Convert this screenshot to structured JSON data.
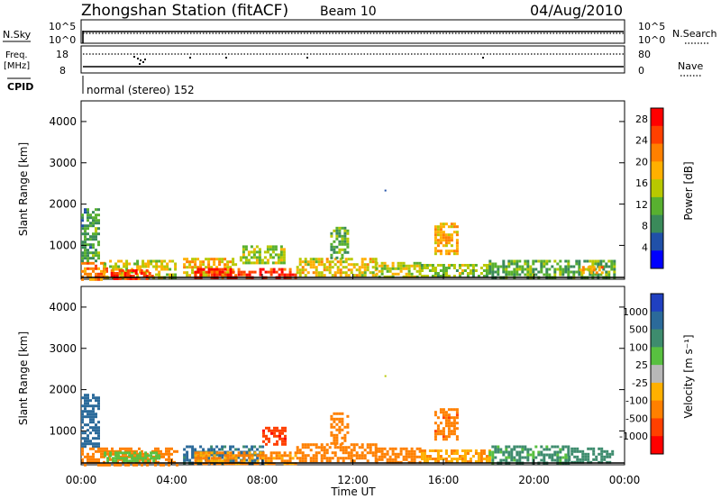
{
  "header": {
    "station_title": "Zhongshan Station (fitACF)",
    "beam": "Beam 10",
    "date": "04/Aug/2010"
  },
  "params": {
    "nsky_label": "N.Sky",
    "nsearch_label": "N.Search",
    "freq_label": "Freq.",
    "freq_unit": "[MHz]",
    "nave_label": "Nave",
    "cpid_label": "CPID",
    "cpid_text": "normal (stereo) 152",
    "noise_ticks": [
      "10^5",
      "10^0"
    ],
    "noise_right_ticks": [
      "10^5",
      "10^0"
    ],
    "freq_ticks": [
      "18",
      "8"
    ],
    "nave_ticks": [
      "80",
      "0"
    ]
  },
  "panels": {
    "power": {
      "ylabel": "Slant Range [km]",
      "colorbar_label": "Power [dB]"
    },
    "velocity": {
      "ylabel": "Slant Range [km]",
      "colorbar_label": "Velocity [m s⁻¹]"
    }
  },
  "xaxis": {
    "label": "Time UT",
    "ticks": [
      "00:00",
      "04:00",
      "08:00",
      "12:00",
      "16:00",
      "20:00",
      "00:00"
    ]
  },
  "colors": {
    "power_scale": [
      "#0000ff",
      "#2050a8",
      "#3a8a5a",
      "#58b030",
      "#b8c800",
      "#ffb000",
      "#ff8000",
      "#ff4000",
      "#ff0000"
    ],
    "velocity_scale": [
      "#2040c0",
      "#2b6a9a",
      "#3e8c6e",
      "#58c040",
      "#b8b8b8",
      "#ffb000",
      "#ff8000",
      "#ff4000",
      "#ff0000"
    ]
  },
  "chart_data": [
    {
      "type": "heatmap",
      "title": "Power",
      "x_range_hours": [
        0,
        24
      ],
      "ylim": [
        180,
        4500
      ],
      "yticks": [
        1000,
        2000,
        3000,
        4000
      ],
      "colorbar": {
        "label": "Power [dB]",
        "ticks": [
          4,
          8,
          12,
          16,
          20,
          24,
          28
        ],
        "range": [
          0,
          30
        ]
      },
      "blobs": [
        {
          "t0": 0.0,
          "t1": 1.1,
          "r0": 180,
          "r1": 600,
          "v": 22
        },
        {
          "t0": 0.0,
          "t1": 0.8,
          "r0": 600,
          "r1": 1900,
          "v": 10
        },
        {
          "t0": 1.0,
          "t1": 4.2,
          "r0": 200,
          "r1": 650,
          "v": 16
        },
        {
          "t0": 1.3,
          "t1": 3.2,
          "r0": 220,
          "r1": 420,
          "v": 26
        },
        {
          "t0": 4.5,
          "t1": 7.0,
          "r0": 250,
          "r1": 700,
          "v": 18
        },
        {
          "t0": 5.0,
          "t1": 9.5,
          "r0": 200,
          "r1": 450,
          "v": 27
        },
        {
          "t0": 7.0,
          "t1": 9.0,
          "r0": 550,
          "r1": 1000,
          "v": 14
        },
        {
          "t0": 9.5,
          "t1": 13.0,
          "r0": 250,
          "r1": 700,
          "v": 17
        },
        {
          "t0": 11.0,
          "t1": 11.8,
          "r0": 700,
          "r1": 1450,
          "v": 11
        },
        {
          "t0": 13.0,
          "t1": 15.0,
          "r0": 250,
          "r1": 600,
          "v": 15
        },
        {
          "t0": 15.6,
          "t1": 16.6,
          "r0": 800,
          "r1": 1550,
          "v": 19
        },
        {
          "t0": 15.0,
          "t1": 18.0,
          "r0": 250,
          "r1": 550,
          "v": 13
        },
        {
          "t0": 18.0,
          "t1": 23.5,
          "r0": 250,
          "r1": 650,
          "v": 11
        },
        {
          "t0": 22.0,
          "t1": 23.0,
          "r0": 350,
          "r1": 500,
          "v": 20
        }
      ]
    },
    {
      "type": "heatmap",
      "title": "Velocity",
      "x_range_hours": [
        0,
        24
      ],
      "ylim": [
        180,
        4500
      ],
      "yticks": [
        1000,
        2000,
        3000,
        4000
      ],
      "colorbar": {
        "label": "Velocity [m s⁻¹]",
        "ticks": [
          1000,
          500,
          100,
          25,
          -25,
          -100,
          -500,
          -1000
        ]
      },
      "blobs": [
        {
          "t0": 0.0,
          "t1": 0.8,
          "r0": 600,
          "r1": 1900,
          "v": 700
        },
        {
          "t0": 0.0,
          "t1": 4.2,
          "r0": 200,
          "r1": 600,
          "v": -150
        },
        {
          "t0": 1.0,
          "t1": 3.5,
          "r0": 250,
          "r1": 500,
          "v": 60
        },
        {
          "t0": 4.5,
          "t1": 8.0,
          "r0": 250,
          "r1": 650,
          "v": 600
        },
        {
          "t0": 5.0,
          "t1": 9.5,
          "r0": 200,
          "r1": 500,
          "v": -120
        },
        {
          "t0": 8.0,
          "t1": 9.0,
          "r0": 700,
          "r1": 1100,
          "v": -800
        },
        {
          "t0": 9.5,
          "t1": 13.0,
          "r0": 250,
          "r1": 700,
          "v": -300
        },
        {
          "t0": 11.0,
          "t1": 11.8,
          "r0": 700,
          "r1": 1450,
          "v": -200
        },
        {
          "t0": 13.0,
          "t1": 15.0,
          "r0": 250,
          "r1": 600,
          "v": -150
        },
        {
          "t0": 15.6,
          "t1": 16.6,
          "r0": 800,
          "r1": 1550,
          "v": -400
        },
        {
          "t0": 15.0,
          "t1": 18.0,
          "r0": 250,
          "r1": 550,
          "v": -90
        },
        {
          "t0": 18.0,
          "t1": 21.5,
          "r0": 250,
          "r1": 650,
          "v": 120
        },
        {
          "t0": 21.5,
          "t1": 23.5,
          "r0": 250,
          "r1": 600,
          "v": 200
        }
      ]
    }
  ]
}
